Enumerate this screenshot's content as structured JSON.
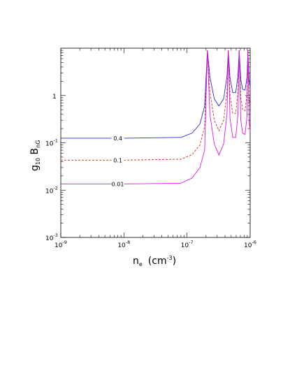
{
  "chart_data": {
    "type": "line",
    "x_scale": "log",
    "y_scale": "log",
    "xlim": [
      1e-09,
      1e-06
    ],
    "ylim": [
      0.001,
      10
    ],
    "xlabel": {
      "base": "n",
      "sub": "e",
      "unit": "(cm",
      "unit_sup": "-3",
      "close": ")"
    },
    "ylabel": {
      "base": "g",
      "sub": "10",
      "mid": " B",
      "sub2": "nG"
    },
    "x_ticks": [
      {
        "value": 1e-09,
        "base": "10",
        "exp": "-9"
      },
      {
        "value": 1e-08,
        "base": "10",
        "exp": "-8"
      },
      {
        "value": 1e-07,
        "base": "10",
        "exp": "-7"
      },
      {
        "value": 1e-06,
        "base": "10",
        "exp": "-6"
      }
    ],
    "y_ticks": [
      {
        "value": 0.001,
        "base": "10",
        "exp": "-3"
      },
      {
        "value": 0.01,
        "base": "10",
        "exp": "-2"
      },
      {
        "value": 0.1,
        "base": "10",
        "exp": "-1"
      },
      {
        "value": 1,
        "base": "1",
        "exp": ""
      }
    ],
    "resonance_peaks_x": [
      2.1e-07,
      4.5e-07,
      6.7e-07,
      9.2e-07
    ],
    "series": [
      {
        "label": "0.4",
        "color": "#2b2bd6",
        "dash": "none",
        "base": 0.125,
        "label_x": 8e-09,
        "x": [
          1e-09,
          1e-08,
          8e-08,
          1.2e-07,
          1.6e-07,
          1.9e-07,
          2.1e-07,
          2.3e-07,
          2.7e-07,
          3.2e-07,
          3.8e-07,
          4.3e-07,
          4.5e-07,
          4.8e-07,
          5.3e-07,
          5.9e-07,
          6.4e-07,
          6.7e-07,
          7.1e-07,
          7.6e-07,
          8.3e-07,
          8.9e-07,
          9.2e-07,
          9.6e-07,
          1e-06
        ],
        "y": [
          0.125,
          0.125,
          0.13,
          0.16,
          0.25,
          0.6,
          9,
          2.5,
          0.85,
          0.6,
          0.85,
          2.6,
          9,
          2.3,
          1.15,
          1.15,
          2.6,
          9,
          2.2,
          1.35,
          1.3,
          2.4,
          9,
          2.2,
          1.5
        ]
      },
      {
        "label": "0.1",
        "color": "#d22c1a",
        "dash": "3,2",
        "base": 0.043,
        "label_x": 8e-09,
        "x": [
          1e-09,
          1e-08,
          8e-08,
          1.2e-07,
          1.6e-07,
          1.9e-07,
          2.1e-07,
          2.3e-07,
          2.7e-07,
          3.2e-07,
          3.8e-07,
          4.3e-07,
          4.5e-07,
          4.8e-07,
          5.3e-07,
          5.9e-07,
          6.4e-07,
          6.7e-07,
          7.1e-07,
          7.6e-07,
          8.3e-07,
          8.9e-07,
          9.2e-07,
          9.6e-07,
          1e-06
        ],
        "y": [
          0.043,
          0.043,
          0.045,
          0.056,
          0.09,
          0.22,
          9,
          1.2,
          0.3,
          0.18,
          0.3,
          1.2,
          9,
          1.0,
          0.42,
          0.42,
          1.2,
          9,
          0.9,
          0.5,
          0.48,
          1.1,
          9,
          0.95,
          0.55
        ]
      },
      {
        "label": "0.01",
        "color": "#e018e6",
        "dash": "none",
        "base": 0.0135,
        "label_x": 8e-09,
        "x": [
          1e-09,
          1e-08,
          8e-08,
          1.2e-07,
          1.6e-07,
          1.9e-07,
          2.1e-07,
          2.3e-07,
          2.7e-07,
          3.2e-07,
          3.8e-07,
          4.3e-07,
          4.5e-07,
          4.8e-07,
          5.3e-07,
          5.9e-07,
          6.4e-07,
          6.7e-07,
          7.1e-07,
          7.6e-07,
          8.3e-07,
          8.9e-07,
          9.2e-07,
          9.6e-07,
          1e-06
        ],
        "y": [
          0.0135,
          0.0135,
          0.014,
          0.018,
          0.03,
          0.07,
          9,
          0.4,
          0.095,
          0.055,
          0.095,
          0.42,
          9,
          0.32,
          0.13,
          0.13,
          0.4,
          9,
          0.3,
          0.16,
          0.15,
          0.36,
          9,
          0.3,
          0.17
        ]
      }
    ]
  }
}
